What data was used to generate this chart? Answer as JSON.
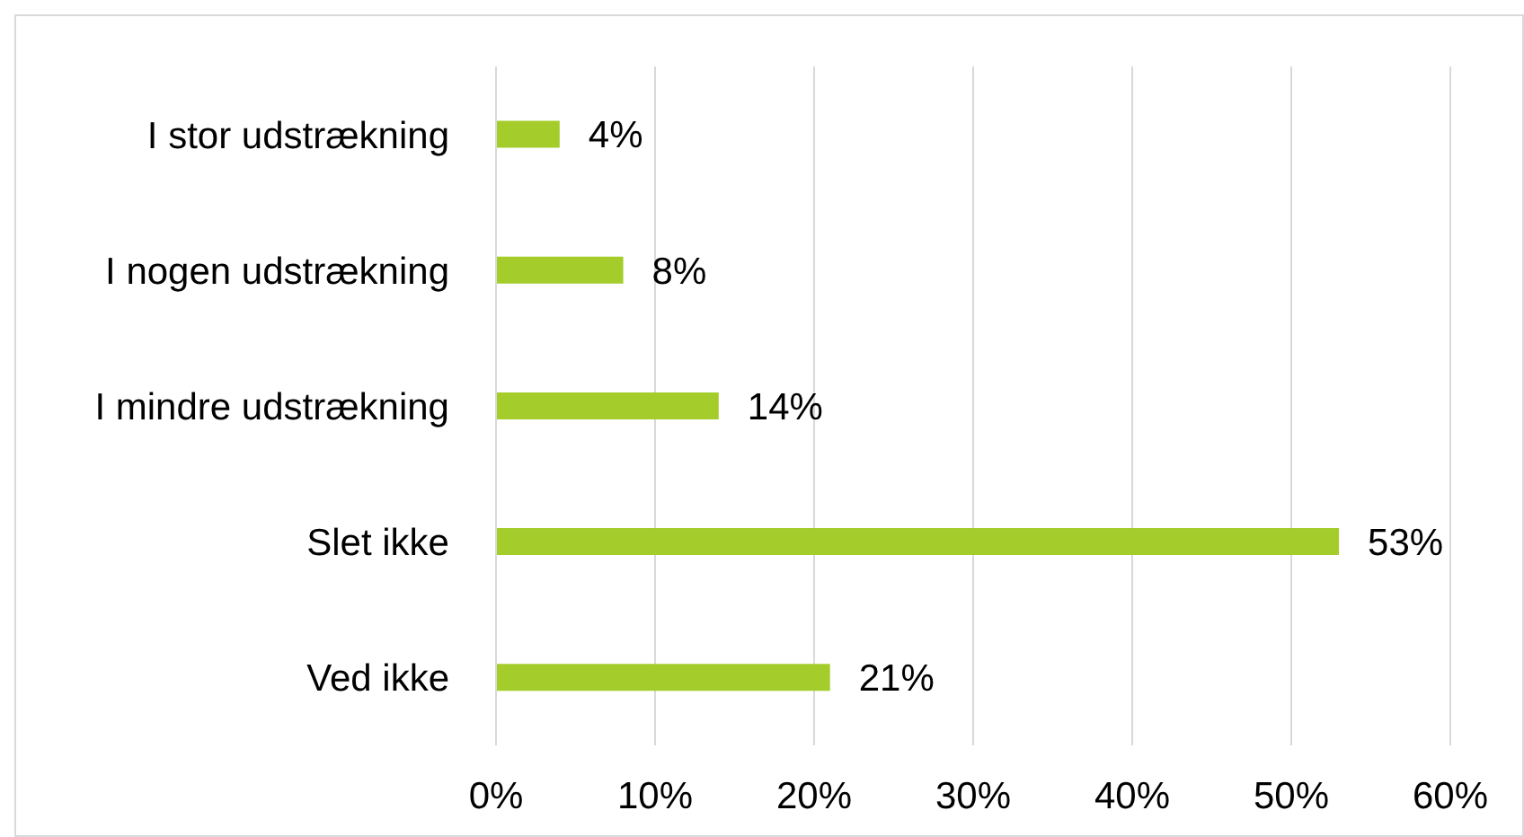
{
  "chart_data": {
    "type": "bar",
    "orientation": "horizontal",
    "categories": [
      "I stor udstrækning",
      "I nogen udstrækning",
      "I mindre udstrækning",
      "Slet ikke",
      "Ved ikke"
    ],
    "values": [
      4,
      8,
      14,
      53,
      21
    ],
    "value_labels": [
      "4%",
      "8%",
      "14%",
      "53%",
      "21%"
    ],
    "color": "#a4cd2c",
    "xlim": [
      0,
      60
    ],
    "xticks": [
      {
        "value": 0,
        "label": "0%"
      },
      {
        "value": 10,
        "label": "10%"
      },
      {
        "value": 20,
        "label": "20%"
      },
      {
        "value": 30,
        "label": "30%"
      },
      {
        "value": 40,
        "label": "40%"
      },
      {
        "value": 50,
        "label": "50%"
      },
      {
        "value": 60,
        "label": "60%"
      }
    ],
    "grid": "x"
  }
}
